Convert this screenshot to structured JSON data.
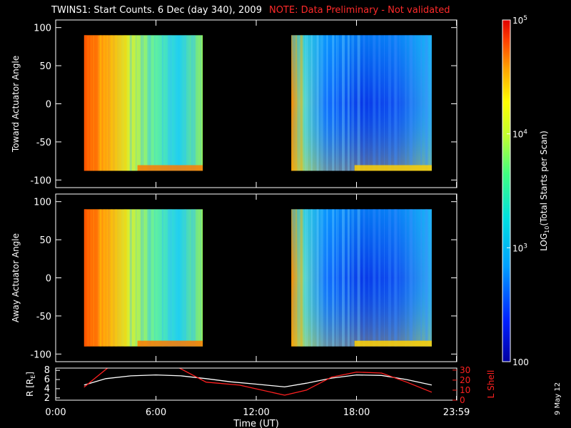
{
  "header": {
    "title": "TWINS1: Start Counts.  6 Dec (day 340), 2009",
    "note": "NOTE: Data Preliminary - Not validated"
  },
  "footer": {
    "date_stamp": "9 May 12"
  },
  "chart_data": [
    {
      "type": "heatmap",
      "ylabel": "Toward Actuator Angle",
      "ylim": [
        -110,
        110
      ],
      "yticks": [
        "100",
        "50",
        "0",
        "-50",
        "-100"
      ],
      "ytick_values": [
        100,
        50,
        0,
        -50,
        -100
      ],
      "xlim_hours": [
        0,
        24
      ],
      "data_blocks": [
        {
          "x_start_hours": 1.7,
          "x_end_hours": 8.8,
          "y_range": [
            -88,
            90
          ],
          "level": "medium-high (cyan to red)"
        },
        {
          "x_start_hours": 14.1,
          "x_end_hours": 22.5,
          "y_range": [
            -88,
            90
          ],
          "level": "low to medium (blue to yellow)"
        }
      ]
    },
    {
      "type": "heatmap",
      "ylabel": "Away Actuator Angle",
      "ylim": [
        -110,
        110
      ],
      "yticks": [
        "100",
        "50",
        "0",
        "-50",
        "-100"
      ],
      "ytick_values": [
        100,
        50,
        0,
        -50,
        -100
      ],
      "xlim_hours": [
        0,
        24
      ],
      "data_blocks": [
        {
          "x_start_hours": 1.7,
          "x_end_hours": 8.8,
          "y_range": [
            -90,
            90
          ],
          "level": "medium-high (cyan to red)"
        },
        {
          "x_start_hours": 14.1,
          "x_end_hours": 22.5,
          "y_range": [
            -90,
            90
          ],
          "level": "low to medium (blue to yellow)"
        }
      ]
    },
    {
      "type": "line",
      "xlabel": "Time (UT)",
      "xtick_labels": [
        "0:00",
        "6:00",
        "12:00",
        "18:00",
        "23:59"
      ],
      "xtick_hours": [
        0,
        6,
        12,
        18,
        23.98
      ],
      "left_axis": {
        "label": "R [R",
        "label_sub": "E",
        "label_tail": "]",
        "ylim": [
          1.5,
          8.5
        ],
        "ticks": [
          "8",
          "6",
          "4",
          "2"
        ],
        "tick_values": [
          8,
          6,
          4,
          2
        ]
      },
      "right_axis": {
        "label": "L Shell",
        "ylim": [
          0,
          32
        ],
        "ticks": [
          "30",
          "20",
          "10",
          "0"
        ],
        "tick_values": [
          30,
          20,
          10,
          0
        ],
        "color": "#ff2020"
      },
      "series": [
        {
          "axis": "left",
          "color": "#ffffff",
          "x": [
            1.7,
            3,
            4.5,
            6,
            7.5,
            9,
            10.5,
            12,
            13.7,
            15,
            16.5,
            18,
            19.5,
            21,
            22.5
          ],
          "y": [
            4.8,
            6.2,
            6.8,
            7.0,
            6.8,
            6.2,
            5.5,
            5.0,
            4.4,
            5.2,
            6.3,
            7.0,
            6.9,
            6.0,
            4.8
          ]
        },
        {
          "axis": "right",
          "color": "#ff2020",
          "x": [
            1.7,
            3.1,
            3.3,
            7.2,
            7.4,
            9,
            11,
            13.7,
            15,
            16.5,
            18,
            19.5,
            21,
            22.5
          ],
          "y": [
            13,
            32,
            36,
            36,
            32,
            18,
            15,
            5,
            10,
            23,
            28,
            27,
            18,
            8
          ]
        }
      ]
    }
  ],
  "colorbar": {
    "label": "LOG10(Total Starts per Scan)",
    "label_main": "LOG",
    "label_sub": "10",
    "label_tail": "(Total Starts per Scan)",
    "ticks": [
      {
        "base": "10",
        "exp": "5",
        "value": 100000
      },
      {
        "base": "10",
        "exp": "4",
        "value": 10000
      },
      {
        "base": "10",
        "exp": "3",
        "value": 1000
      },
      {
        "base": "100",
        "exp": "",
        "value": 100
      }
    ],
    "range": [
      100,
      100000
    ],
    "colors": [
      "#0000a0",
      "#0020ff",
      "#00a0ff",
      "#00e0e0",
      "#40ff80",
      "#c0ff30",
      "#ffff00",
      "#ffa000",
      "#ff4000",
      "#e00000"
    ]
  }
}
